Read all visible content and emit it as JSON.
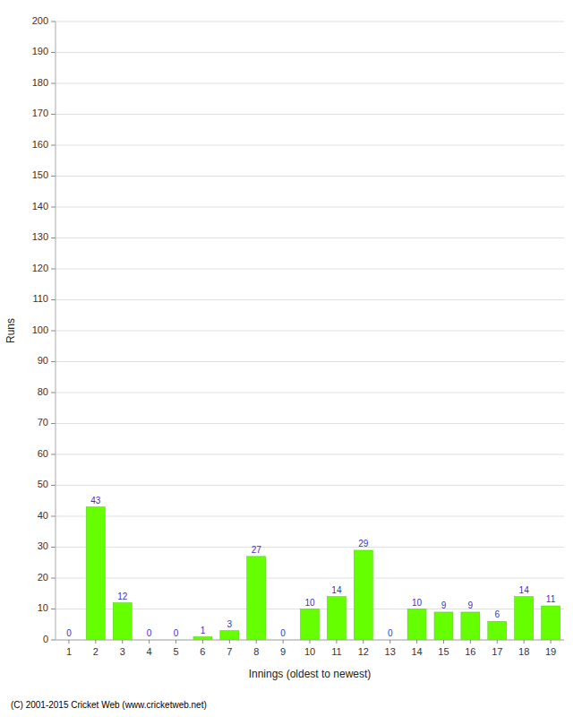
{
  "chart_data": {
    "type": "bar",
    "xlabel": "Innings (oldest to newest)",
    "ylabel": "Runs",
    "categories": [
      "1",
      "2",
      "3",
      "4",
      "5",
      "6",
      "7",
      "8",
      "9",
      "10",
      "11",
      "12",
      "13",
      "14",
      "15",
      "16",
      "17",
      "18",
      "19"
    ],
    "values": [
      0,
      43,
      12,
      0,
      0,
      1,
      3,
      27,
      0,
      10,
      14,
      29,
      0,
      10,
      9,
      9,
      6,
      14,
      11
    ],
    "color": "#66ff00",
    "ylim": [
      0,
      200
    ],
    "yticks": [
      0,
      10,
      20,
      30,
      40,
      50,
      60,
      70,
      80,
      90,
      100,
      110,
      120,
      130,
      140,
      150,
      160,
      170,
      180,
      190,
      200
    ],
    "grid": true,
    "data_labels": true,
    "annotations": [
      "(C) 2001-2015 Cricket Web (www.cricketweb.net)"
    ]
  }
}
